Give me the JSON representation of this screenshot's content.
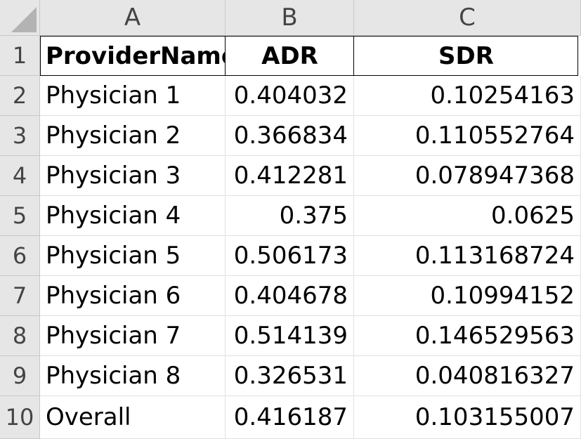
{
  "columns": [
    "A",
    "B",
    "C"
  ],
  "rows": [
    "1",
    "2",
    "3",
    "4",
    "5",
    "6",
    "7",
    "8",
    "9",
    "10"
  ],
  "header": {
    "name": "ProviderName",
    "adr": "ADR",
    "sdr": "SDR"
  },
  "data": [
    {
      "name": "Physician 1",
      "adr": "0.404032",
      "sdr": "0.10254163"
    },
    {
      "name": "Physician 2",
      "adr": "0.366834",
      "sdr": "0.110552764"
    },
    {
      "name": "Physician 3",
      "adr": "0.412281",
      "sdr": "0.078947368"
    },
    {
      "name": "Physician 4",
      "adr": "0.375",
      "sdr": "0.0625"
    },
    {
      "name": "Physician 5",
      "adr": "0.506173",
      "sdr": "0.113168724"
    },
    {
      "name": "Physician 6",
      "adr": "0.404678",
      "sdr": "0.10994152"
    },
    {
      "name": "Physician 7",
      "adr": "0.514139",
      "sdr": "0.146529563"
    },
    {
      "name": "Physician 8",
      "adr": "0.326531",
      "sdr": "0.040816327"
    },
    {
      "name": "Overall",
      "adr": "0.416187",
      "sdr": "0.103155007"
    }
  ]
}
